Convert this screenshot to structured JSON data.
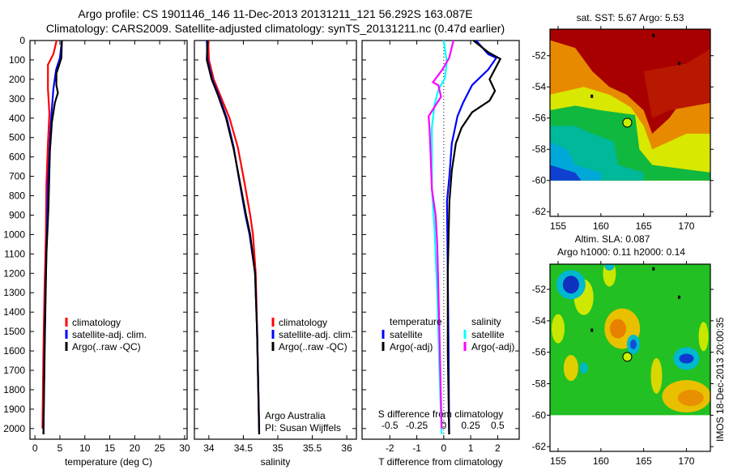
{
  "figure": {
    "title_line1": "Argo profile: CS 1901146_146 11-Dec-2013 20131211_121 56.292S 163.087E",
    "title_line2": "Climatology: CARS2009. Satellite-adjusted climatology: synTS_20131211.nc (0.47d earlier)",
    "credit_line1": "Argo Australia",
    "credit_line2": "PI: Susan Wijffels",
    "timestamp": "IMOS 18-Dec-2013 20:00:35"
  },
  "chart_data": [
    {
      "type": "line",
      "xlabel": "temperature (deg C)",
      "ylabel": "",
      "xlim": [
        -1,
        30.5
      ],
      "ylim": [
        0,
        2055
      ],
      "y_reversed": true,
      "xticks": [
        0,
        5,
        10,
        15,
        20,
        25,
        30
      ],
      "yticks": [
        0,
        100,
        200,
        300,
        400,
        500,
        600,
        700,
        800,
        900,
        1000,
        1100,
        1200,
        1300,
        1400,
        1500,
        1600,
        1700,
        1800,
        1900,
        2000
      ],
      "legend": [
        "climatology",
        "satellite-adj. clim.",
        "Argo(..raw -QC)"
      ],
      "series": [
        {
          "name": "climatology",
          "color": "#ff0000",
          "points": [
            [
              4.35,
              0
            ],
            [
              3.7,
              70
            ],
            [
              2.6,
              125
            ],
            [
              2.6,
              250
            ],
            [
              2.9,
              375
            ],
            [
              2.6,
              530
            ],
            [
              2.3,
              740
            ],
            [
              2.2,
              990
            ],
            [
              1.9,
              1300
            ],
            [
              1.7,
              1600
            ],
            [
              1.5,
              2000
            ]
          ]
        },
        {
          "name": "satellite-adj. clim.",
          "color": "#0000ff",
          "points": [
            [
              5.4,
              0
            ],
            [
              5.0,
              90
            ],
            [
              4.25,
              150
            ],
            [
              3.7,
              250
            ],
            [
              3.3,
              380
            ],
            [
              3.0,
              515
            ],
            [
              2.6,
              740
            ],
            [
              2.4,
              990
            ],
            [
              2.1,
              1300
            ],
            [
              1.9,
              1600
            ],
            [
              1.7,
              2030
            ]
          ]
        },
        {
          "name": "Argo(..raw -QC)",
          "color": "#000000",
          "points": [
            [
              5.4,
              0
            ],
            [
              5.3,
              90
            ],
            [
              4.3,
              170
            ],
            [
              4.3,
              230
            ],
            [
              4.6,
              270
            ],
            [
              4.0,
              320
            ],
            [
              3.4,
              420
            ],
            [
              3.0,
              570
            ],
            [
              2.7,
              865
            ],
            [
              2.3,
              1100
            ],
            [
              2.0,
              1500
            ],
            [
              1.7,
              2030
            ]
          ]
        }
      ]
    },
    {
      "type": "line",
      "xlabel": "salinity",
      "xlim": [
        33.79,
        36.14
      ],
      "ylim": [
        0,
        2055
      ],
      "y_reversed": true,
      "xticks": [
        34,
        34.5,
        35,
        35.5,
        36
      ],
      "legend": [
        "climatology",
        "satellite-adj. clim.",
        "Argo(..raw -QC)"
      ],
      "series": [
        {
          "name": "climatology",
          "color": "#ff0000",
          "points": [
            [
              33.99,
              0
            ],
            [
              34.0,
              100
            ],
            [
              34.07,
              200
            ],
            [
              34.15,
              270
            ],
            [
              34.3,
              400
            ],
            [
              34.42,
              550
            ],
            [
              34.5,
              700
            ],
            [
              34.6,
              900
            ],
            [
              34.64,
              1000
            ],
            [
              34.68,
              1200
            ],
            [
              34.7,
              1500
            ],
            [
              34.73,
              2000
            ]
          ]
        },
        {
          "name": "satellite-adj. clim.",
          "color": "#0000ff",
          "points": [
            [
              33.97,
              0
            ],
            [
              33.98,
              100
            ],
            [
              34.05,
              200
            ],
            [
              34.14,
              280
            ],
            [
              34.26,
              400
            ],
            [
              34.36,
              550
            ],
            [
              34.43,
              700
            ],
            [
              34.53,
              900
            ],
            [
              34.59,
              1000
            ],
            [
              34.67,
              1200
            ],
            [
              34.7,
              1500
            ],
            [
              34.73,
              2030
            ]
          ]
        },
        {
          "name": "Argo(..raw -QC)",
          "color": "#000000",
          "points": [
            [
              33.98,
              0
            ],
            [
              33.97,
              100
            ],
            [
              34.04,
              200
            ],
            [
              34.13,
              280
            ],
            [
              34.25,
              400
            ],
            [
              34.36,
              560
            ],
            [
              34.44,
              710
            ],
            [
              34.54,
              900
            ],
            [
              34.6,
              1000
            ],
            [
              34.67,
              1200
            ],
            [
              34.7,
              1500
            ],
            [
              34.73,
              2030
            ]
          ]
        }
      ]
    },
    {
      "type": "line",
      "xlabel": "T difference from climatology",
      "x2label": "S difference from climatology",
      "xlim": [
        -3.03,
        2.8
      ],
      "x2lim": [
        -0.7575,
        0.7
      ],
      "ylim": [
        0,
        2055
      ],
      "y_reversed": true,
      "xticks": [
        -2,
        -1,
        0,
        1,
        2
      ],
      "x2ticks": [
        -0.5,
        -0.25,
        0,
        0.25,
        0.5
      ],
      "legend_headers": [
        "temperature",
        "salinity"
      ],
      "legend": [
        "satellite",
        "Argo(-adj)",
        "satellite",
        "Argo(-adj)"
      ],
      "series": [
        {
          "name": "temperature satellite",
          "axis": "T",
          "color": "#0000ff",
          "points": [
            [
              1.2,
              0
            ],
            [
              1.65,
              70
            ],
            [
              1.95,
              90
            ],
            [
              1.65,
              150
            ],
            [
              1.05,
              230
            ],
            [
              0.72,
              320
            ],
            [
              0.51,
              390
            ],
            [
              0.3,
              530
            ],
            [
              0.21,
              700
            ],
            [
              0.12,
              830
            ],
            [
              0.15,
              1200
            ],
            [
              0.18,
              1600
            ],
            [
              0.2,
              2030
            ]
          ]
        },
        {
          "name": "temperature Argo(-adj)",
          "axis": "T",
          "color": "#000000",
          "points": [
            [
              1.1,
              0
            ],
            [
              1.65,
              60
            ],
            [
              2.1,
              95
            ],
            [
              1.7,
              200
            ],
            [
              1.9,
              260
            ],
            [
              1.7,
              310
            ],
            [
              1.05,
              370
            ],
            [
              0.66,
              450
            ],
            [
              0.45,
              530
            ],
            [
              0.3,
              670
            ],
            [
              0.21,
              830
            ],
            [
              0.15,
              1200
            ],
            [
              0.15,
              1600
            ],
            [
              0.2,
              2030
            ]
          ]
        },
        {
          "name": "salinity satellite",
          "axis": "S",
          "color": "#00ffff",
          "points": [
            [
              0,
              0
            ],
            [
              0.028,
              110
            ],
            [
              0.01,
              195
            ],
            [
              -0.047,
              250
            ],
            [
              -0.085,
              330
            ],
            [
              -0.11,
              450
            ],
            [
              -0.11,
              765
            ],
            [
              -0.085,
              974
            ],
            [
              -0.06,
              1300
            ],
            [
              -0.04,
              1700
            ],
            [
              -0.02,
              2030
            ]
          ]
        },
        {
          "name": "salinity Argo(-adj)",
          "axis": "S",
          "color": "#ff00ff",
          "points": [
            [
              0.09,
              0
            ],
            [
              0.05,
              90
            ],
            [
              -0.013,
              150
            ],
            [
              -0.1,
              215
            ],
            [
              -0.05,
              230
            ],
            [
              -0.025,
              290
            ],
            [
              -0.14,
              390
            ],
            [
              -0.13,
              470
            ],
            [
              -0.11,
              765
            ],
            [
              -0.075,
              900
            ],
            [
              -0.06,
              1050
            ],
            [
              -0.04,
              1500
            ],
            [
              -0.02,
              2000
            ]
          ]
        }
      ]
    },
    {
      "type": "heatmap",
      "title": "sat. SST: 5.67 Argo: 5.53",
      "xlim": [
        154.05,
        172.8
      ],
      "ylim": [
        -50.3,
        -62.3
      ],
      "xticks": [
        155,
        160,
        165,
        170
      ],
      "yticks": [
        -52,
        -54,
        -56,
        -58,
        -60,
        -62
      ],
      "argo_position": [
        163.087,
        -56.292
      ]
    },
    {
      "type": "heatmap",
      "title_line1": "Altim. SLA: 0.087",
      "title_line2": "Argo h1000: 0.11 h2000: 0.14",
      "xlim": [
        154.05,
        172.8
      ],
      "ylim": [
        -50.4,
        -62.3
      ],
      "xticks": [
        155,
        160,
        165,
        170
      ],
      "yticks": [
        -52,
        -54,
        -56,
        -58,
        -60,
        -62
      ],
      "argo_position": [
        163.087,
        -56.292
      ]
    }
  ]
}
